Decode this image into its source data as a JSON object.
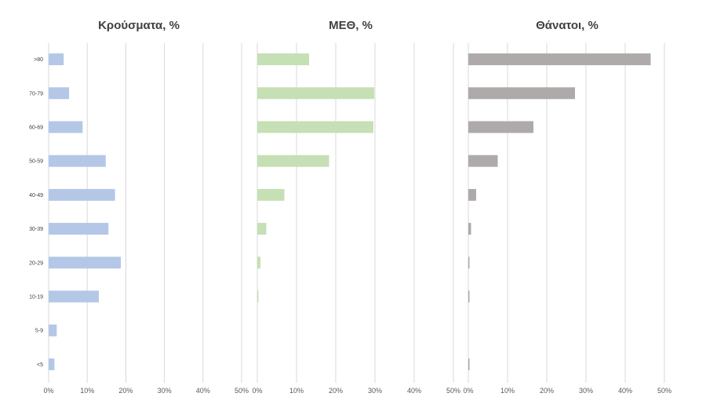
{
  "chart_data": [
    {
      "type": "bar",
      "orientation": "horizontal",
      "title": "Κρούσματα, %",
      "categories": [
        ">80",
        "70-79",
        "60-69",
        "50-59",
        "40-49",
        "30-39",
        "20-29",
        "10-19",
        "5-9",
        "<5"
      ],
      "values": [
        3.9,
        5.3,
        8.8,
        14.8,
        17.2,
        15.5,
        18.7,
        13.0,
        2.1,
        1.5
      ],
      "xlim": [
        0,
        50
      ],
      "xticks": [
        "0%",
        "10%",
        "20%",
        "30%",
        "40%",
        "50%"
      ],
      "color": "#b4c7e7",
      "grid": true
    },
    {
      "type": "bar",
      "orientation": "horizontal",
      "title": "ΜΕΘ, %",
      "categories": [
        ">80",
        "70-79",
        "60-69",
        "50-59",
        "40-49",
        "30-39",
        "20-29",
        "10-19",
        "5-9",
        "<5"
      ],
      "values": [
        13.2,
        29.8,
        29.6,
        18.3,
        6.9,
        2.3,
        0.8,
        0.3,
        0,
        0
      ],
      "xlim": [
        0,
        50
      ],
      "xticks": [
        "0%",
        "10%",
        "20%",
        "30%",
        "40%",
        "50%"
      ],
      "color": "#c5e0b4",
      "grid": true
    },
    {
      "type": "bar",
      "orientation": "horizontal",
      "title": "Θάνατοι, %",
      "categories": [
        ">80",
        "70-79",
        "60-69",
        "50-59",
        "40-49",
        "30-39",
        "20-29",
        "10-19",
        "5-9",
        "<5"
      ],
      "values": [
        46.5,
        27.2,
        16.6,
        7.5,
        2.0,
        0.7,
        0.3,
        0.3,
        0,
        0.3
      ],
      "xlim": [
        0,
        50
      ],
      "xticks": [
        "0%",
        "10%",
        "20%",
        "30%",
        "40%",
        "50%"
      ],
      "color": "#aeaaaa",
      "grid": true
    }
  ]
}
